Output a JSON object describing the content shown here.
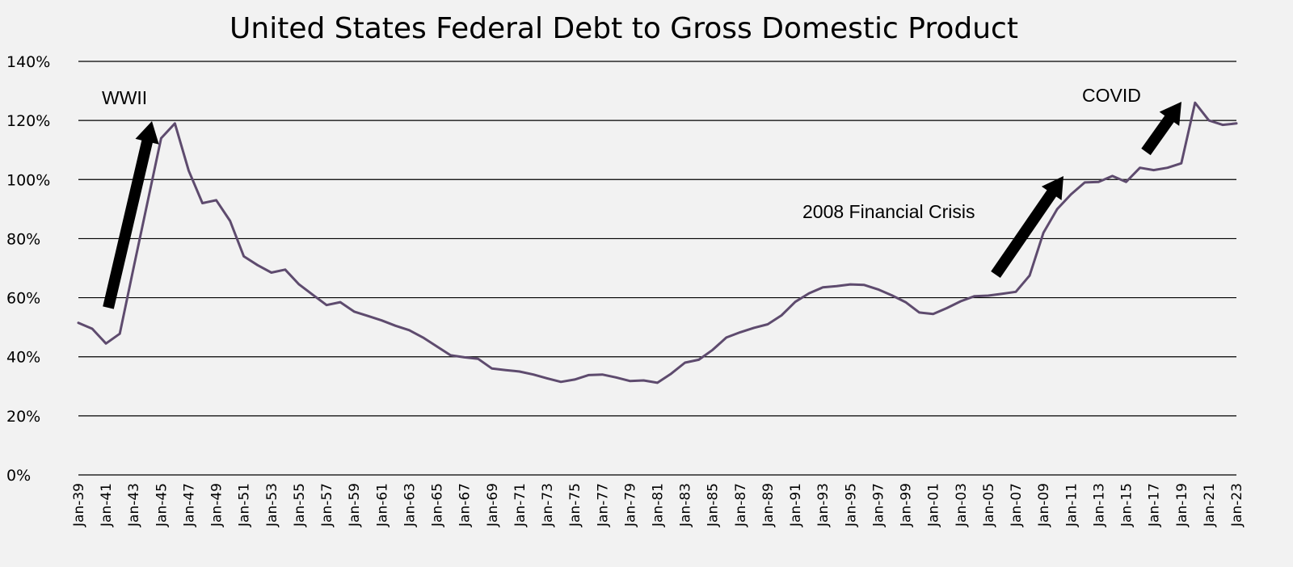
{
  "chart_data": {
    "type": "line",
    "title": "United States Federal Debt to Gross Domestic Product",
    "xlabel": "",
    "ylabel": "",
    "ylim": [
      0,
      140
    ],
    "yticks": [
      "0%",
      "20%",
      "40%",
      "60%",
      "80%",
      "100%",
      "120%",
      "140%"
    ],
    "grid": true,
    "legend": "none",
    "line_color": "#5e4b6e",
    "x_tick_labels": [
      "Jan-39",
      "Jan-41",
      "Jan-43",
      "Jan-45",
      "Jan-47",
      "Jan-49",
      "Jan-51",
      "Jan-53",
      "Jan-55",
      "Jan-57",
      "Jan-59",
      "Jan-61",
      "Jan-63",
      "Jan-65",
      "Jan-67",
      "Jan-69",
      "Jan-71",
      "Jan-73",
      "Jan-75",
      "Jan-77",
      "Jan-79",
      "Jan-81",
      "Jan-83",
      "Jan-85",
      "Jan-87",
      "Jan-89",
      "Jan-91",
      "Jan-93",
      "Jan-95",
      "Jan-97",
      "Jan-99",
      "Jan-01",
      "Jan-03",
      "Jan-05",
      "Jan-07",
      "Jan-09",
      "Jan-11",
      "Jan-13",
      "Jan-15",
      "Jan-17",
      "Jan-19",
      "Jan-21",
      "Jan-23"
    ],
    "x": [
      1939,
      1940,
      1941,
      1942,
      1943,
      1944,
      1945,
      1946,
      1947,
      1948,
      1949,
      1950,
      1951,
      1952,
      1953,
      1954,
      1955,
      1956,
      1957,
      1958,
      1959,
      1960,
      1961,
      1962,
      1963,
      1964,
      1965,
      1966,
      1967,
      1968,
      1969,
      1970,
      1971,
      1972,
      1973,
      1974,
      1975,
      1976,
      1977,
      1978,
      1979,
      1980,
      1981,
      1982,
      1983,
      1984,
      1985,
      1986,
      1987,
      1988,
      1989,
      1990,
      1991,
      1992,
      1993,
      1994,
      1995,
      1996,
      1997,
      1998,
      1999,
      2000,
      2001,
      2002,
      2003,
      2004,
      2005,
      2006,
      2007,
      2008,
      2009,
      2010,
      2011,
      2012,
      2013,
      2014,
      2015,
      2016,
      2017,
      2018,
      2019,
      2020,
      2021,
      2022,
      2023
    ],
    "values": [
      51.5,
      49.5,
      44.5,
      47.8,
      70,
      92,
      114,
      119,
      103,
      92,
      93,
      86,
      74,
      71,
      68.5,
      69.5,
      64.5,
      61,
      57.5,
      58.5,
      55.3,
      53.8,
      52.3,
      50.5,
      49,
      46.5,
      43.5,
      40.5,
      39.8,
      39.3,
      36,
      35.5,
      35,
      34,
      32.7,
      31.5,
      32.3,
      33.8,
      34,
      33,
      31.8,
      32,
      31.2,
      34.3,
      38,
      39,
      42.3,
      46.5,
      48.3,
      49.8,
      51,
      54,
      58.6,
      61.5,
      63.5,
      63.9,
      64.5,
      64.3,
      62.8,
      60.8,
      58.5,
      55,
      54.5,
      56.5,
      58.8,
      60.5,
      60.7,
      61.3,
      62,
      67.5,
      82,
      90,
      95,
      99,
      99.2,
      101.2,
      99.2,
      104,
      103.2,
      104,
      105.5,
      126,
      120,
      118.5,
      119
    ]
  },
  "annotations": [
    {
      "label": "WWII"
    },
    {
      "label": "2008 Financial Crisis"
    },
    {
      "label": "COVID"
    }
  ]
}
